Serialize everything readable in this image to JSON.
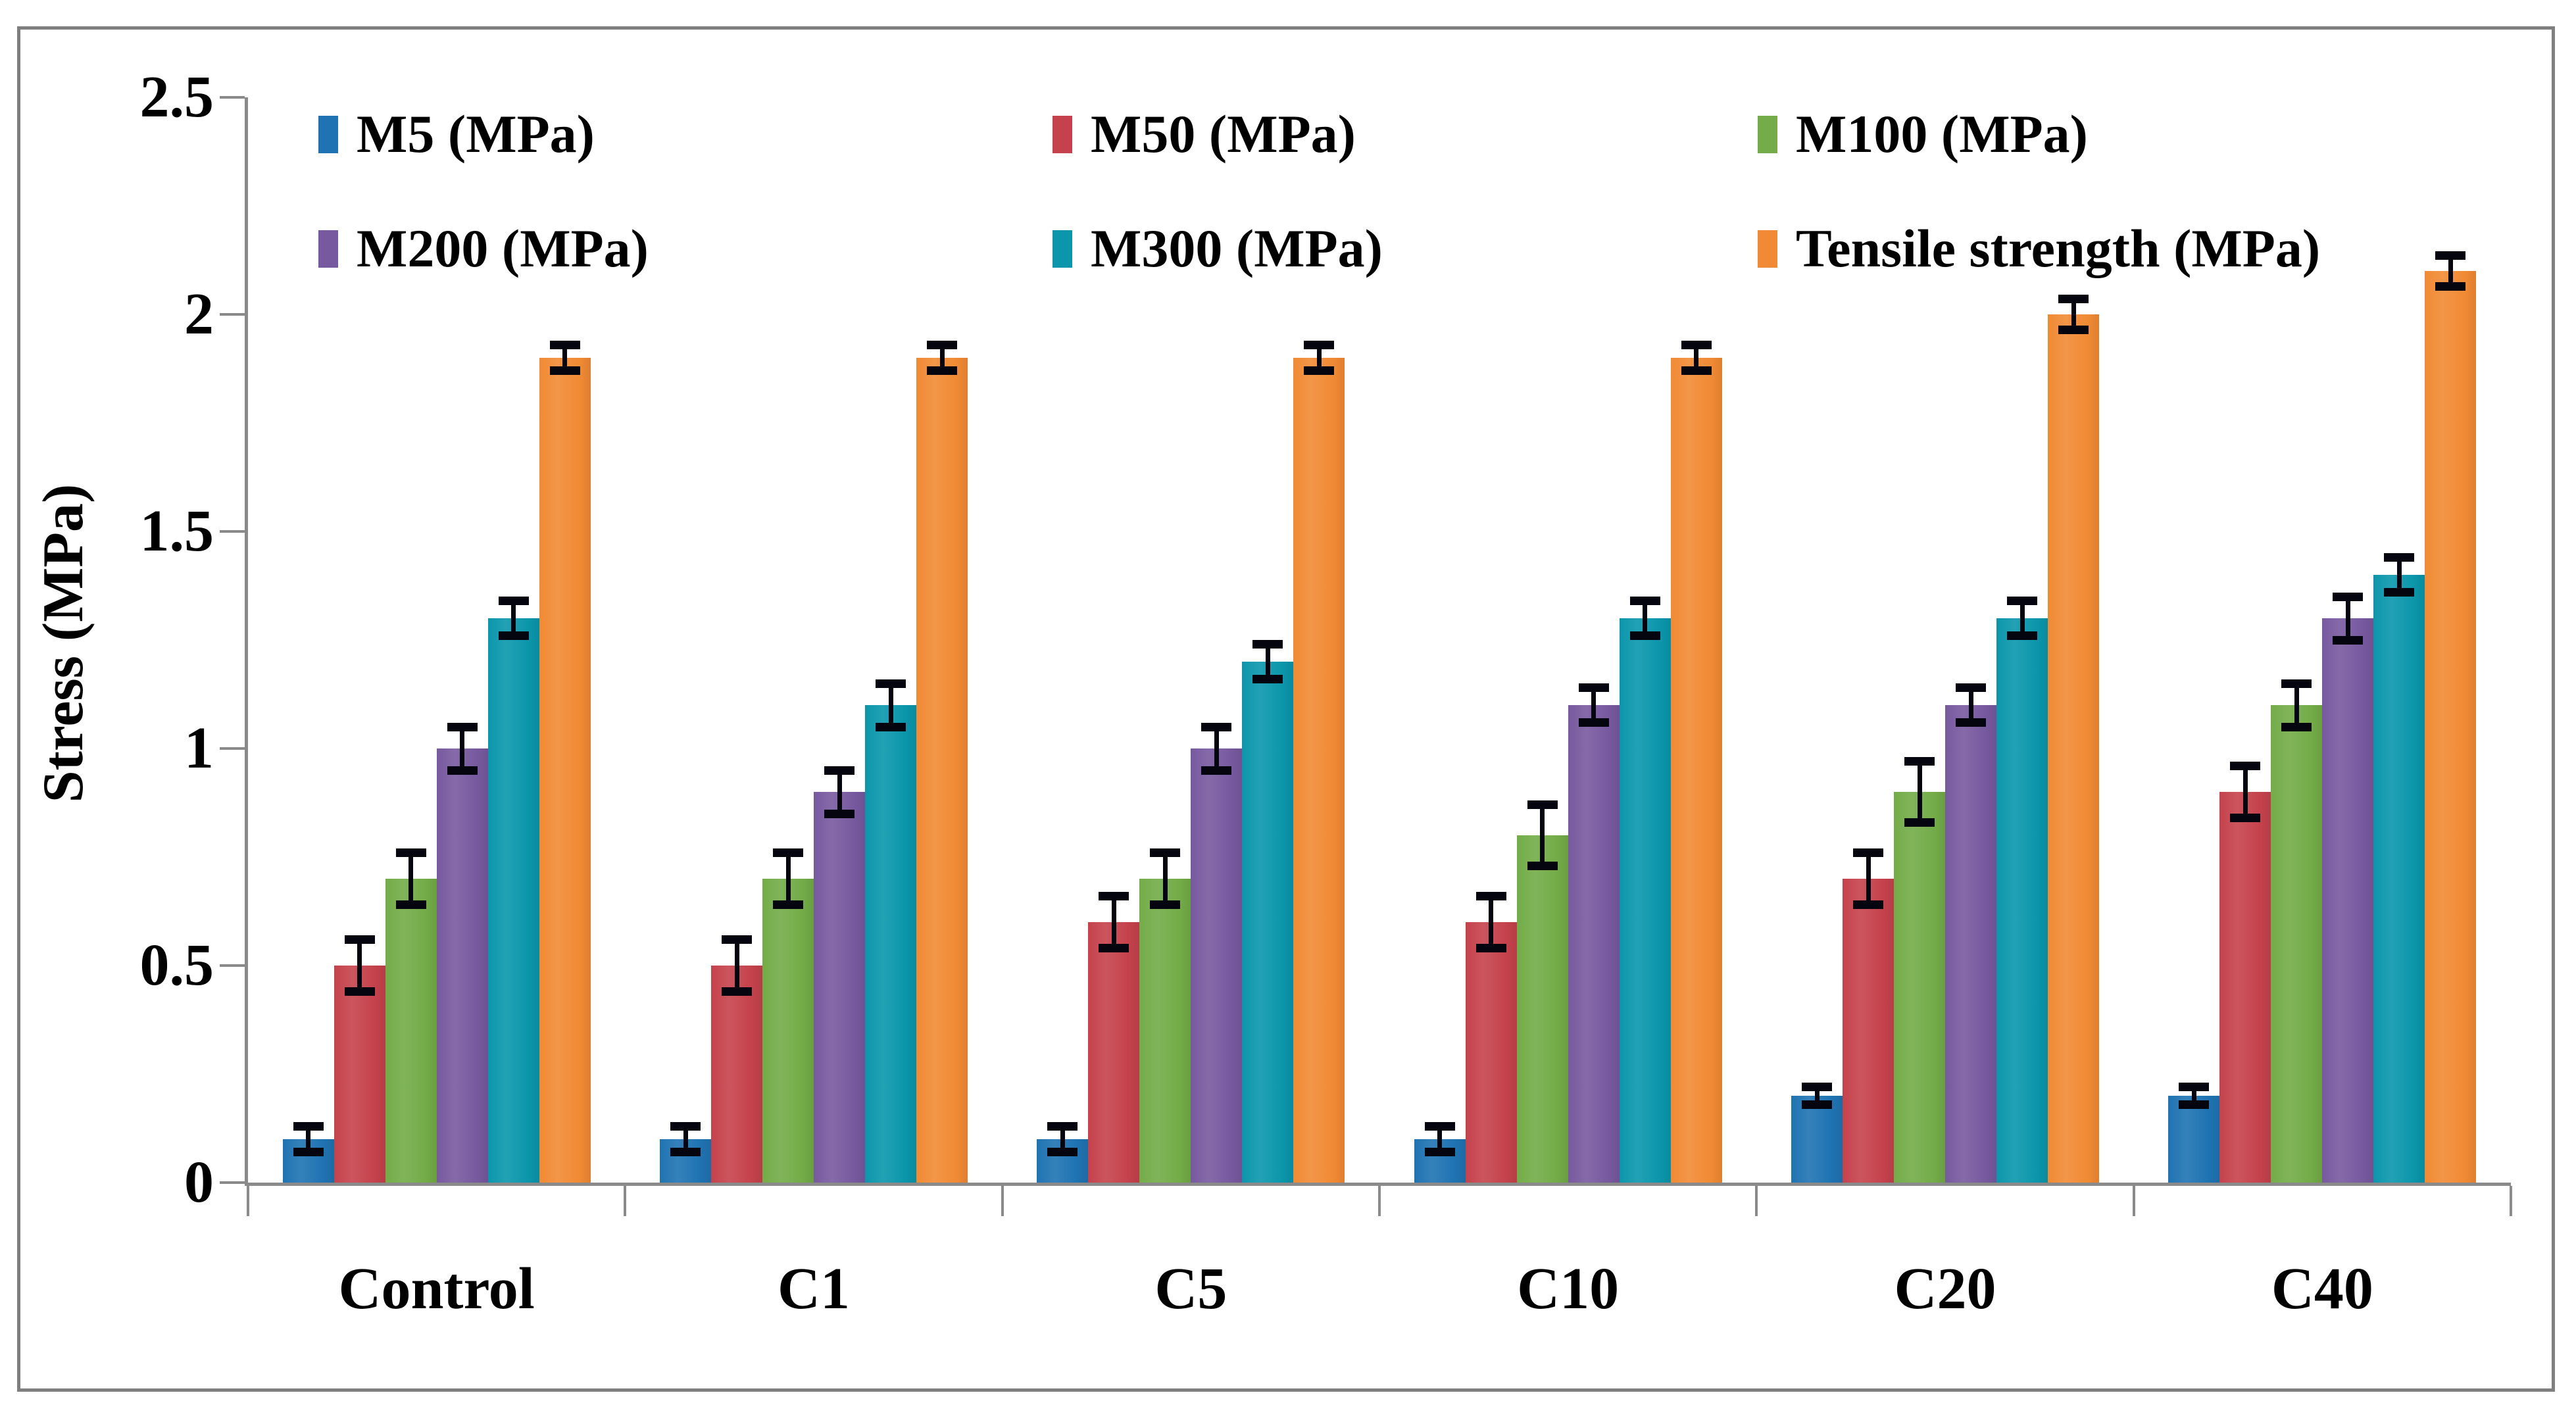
{
  "figure": {
    "background": "#ffffff",
    "border_color": "#7f7f7f",
    "axis_color": "#8a8a8a",
    "error_bar_color": "#050510"
  },
  "chart_data": {
    "type": "bar",
    "title": "",
    "categories": [
      "Control",
      "C1",
      "C5",
      "C10",
      "C20",
      "C40"
    ],
    "series": [
      {
        "name": "M5 (MPa)",
        "color": "#1F73B2",
        "values": [
          0.1,
          0.1,
          0.1,
          0.1,
          0.2,
          0.2
        ],
        "errors": [
          0.03,
          0.03,
          0.03,
          0.03,
          0.02,
          0.02
        ]
      },
      {
        "name": "M50 (MPa)",
        "color": "#C5424C",
        "values": [
          0.5,
          0.5,
          0.6,
          0.6,
          0.7,
          0.9
        ],
        "errors": [
          0.06,
          0.06,
          0.06,
          0.06,
          0.06,
          0.06
        ]
      },
      {
        "name": "M100 (MPa)",
        "color": "#73AC48",
        "values": [
          0.7,
          0.7,
          0.7,
          0.8,
          0.9,
          1.1
        ],
        "errors": [
          0.06,
          0.06,
          0.06,
          0.07,
          0.07,
          0.05
        ]
      },
      {
        "name": "M200 (MPa)",
        "color": "#77599F",
        "values": [
          1.0,
          0.9,
          1.0,
          1.1,
          1.1,
          1.3
        ],
        "errors": [
          0.05,
          0.05,
          0.05,
          0.04,
          0.04,
          0.05
        ]
      },
      {
        "name": "M300 (MPa)",
        "color": "#0B96AC",
        "values": [
          1.3,
          1.1,
          1.2,
          1.3,
          1.3,
          1.4
        ],
        "errors": [
          0.04,
          0.05,
          0.04,
          0.04,
          0.04,
          0.04
        ]
      },
      {
        "name": "Tensile strength (MPa)",
        "color": "#F18A34",
        "values": [
          1.9,
          1.9,
          1.9,
          1.9,
          2.0,
          2.1
        ],
        "errors": [
          0.03,
          0.03,
          0.03,
          0.03,
          0.035,
          0.035
        ]
      }
    ],
    "xlabel": "",
    "ylabel": "Stress (MPa)",
    "ylim": [
      0,
      2.5
    ],
    "yticks": [
      0,
      0.5,
      1,
      1.5,
      2,
      2.5
    ],
    "ytick_labels": [
      "0",
      "0.5",
      "1",
      "1.5",
      "2",
      "2.5"
    ],
    "grid": false,
    "legend_position": "top-inside",
    "error_bars": true
  }
}
